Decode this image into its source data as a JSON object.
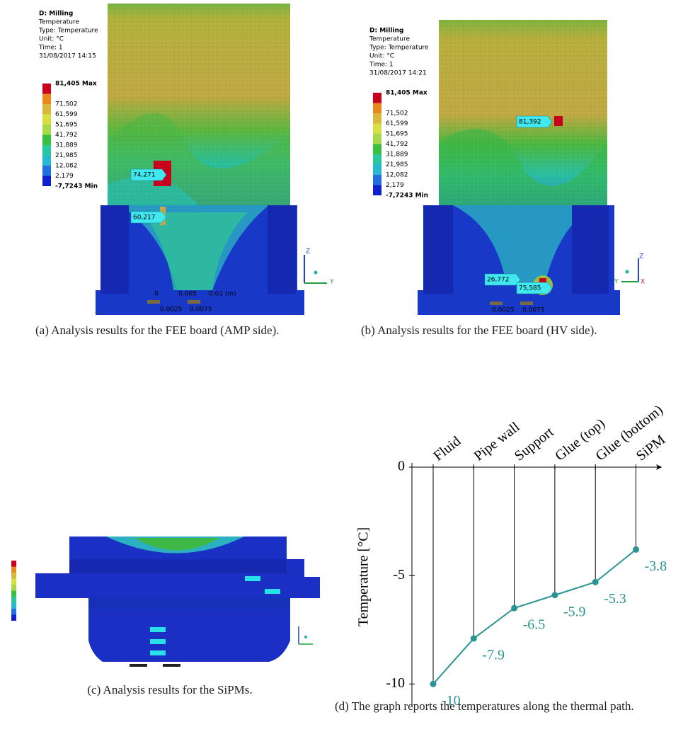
{
  "panel_a": {
    "header": [
      "D: Milling",
      "Temperature",
      "Type: Temperature",
      "Unit: °C",
      "Time: 1",
      "31/08/2017 14:15"
    ],
    "legend": [
      "81,405 Max",
      "71,502",
      "61,599",
      "51,695",
      "41,792",
      "31,889",
      "21,985",
      "12,082",
      "2,179",
      "-7,7243 Min"
    ],
    "probes": [
      "74,271",
      "60,217"
    ],
    "scale": [
      "0",
      "0.005",
      "0.01 (m)",
      "0.0025",
      "0.0075"
    ],
    "axes": [
      "Z",
      "Y"
    ],
    "caption": "(a) Analysis results for the FEE board (AMP side)."
  },
  "panel_b": {
    "header": [
      "D: Milling",
      "Temperature",
      "Type: Temperature",
      "Unit: °C",
      "Time: 1",
      "31/08/2017 14:21"
    ],
    "legend": [
      "81,405 Max",
      "71,502",
      "61,599",
      "51,695",
      "41,792",
      "31,889",
      "21,985",
      "12,082",
      "2,179",
      "-7,7243 Min"
    ],
    "probes": [
      "81,392",
      "26,772",
      "75,585"
    ],
    "scale": [
      "0.0025",
      "0.0075"
    ],
    "axes": [
      "Z",
      "Y",
      "X"
    ],
    "caption": "(b) Analysis results for the FEE board (HV side)."
  },
  "panel_c": {
    "caption": "(c) Analysis results for the SiPMs."
  },
  "chart_data": {
    "type": "line",
    "categories": [
      "Fluid",
      "Pipe wall",
      "Support",
      "Glue (top)",
      "Glue (bottom)",
      "SiPM"
    ],
    "values": [
      -10,
      -7.9,
      -6.5,
      -5.9,
      -5.3,
      -3.8
    ],
    "color": "#2a9494",
    "ylim": [
      -11,
      0
    ],
    "yticks": [
      0,
      -5,
      -10
    ],
    "y_label": "Temperature [°C]",
    "caption": "(d) The graph reports the temperatures along the thermal path."
  }
}
